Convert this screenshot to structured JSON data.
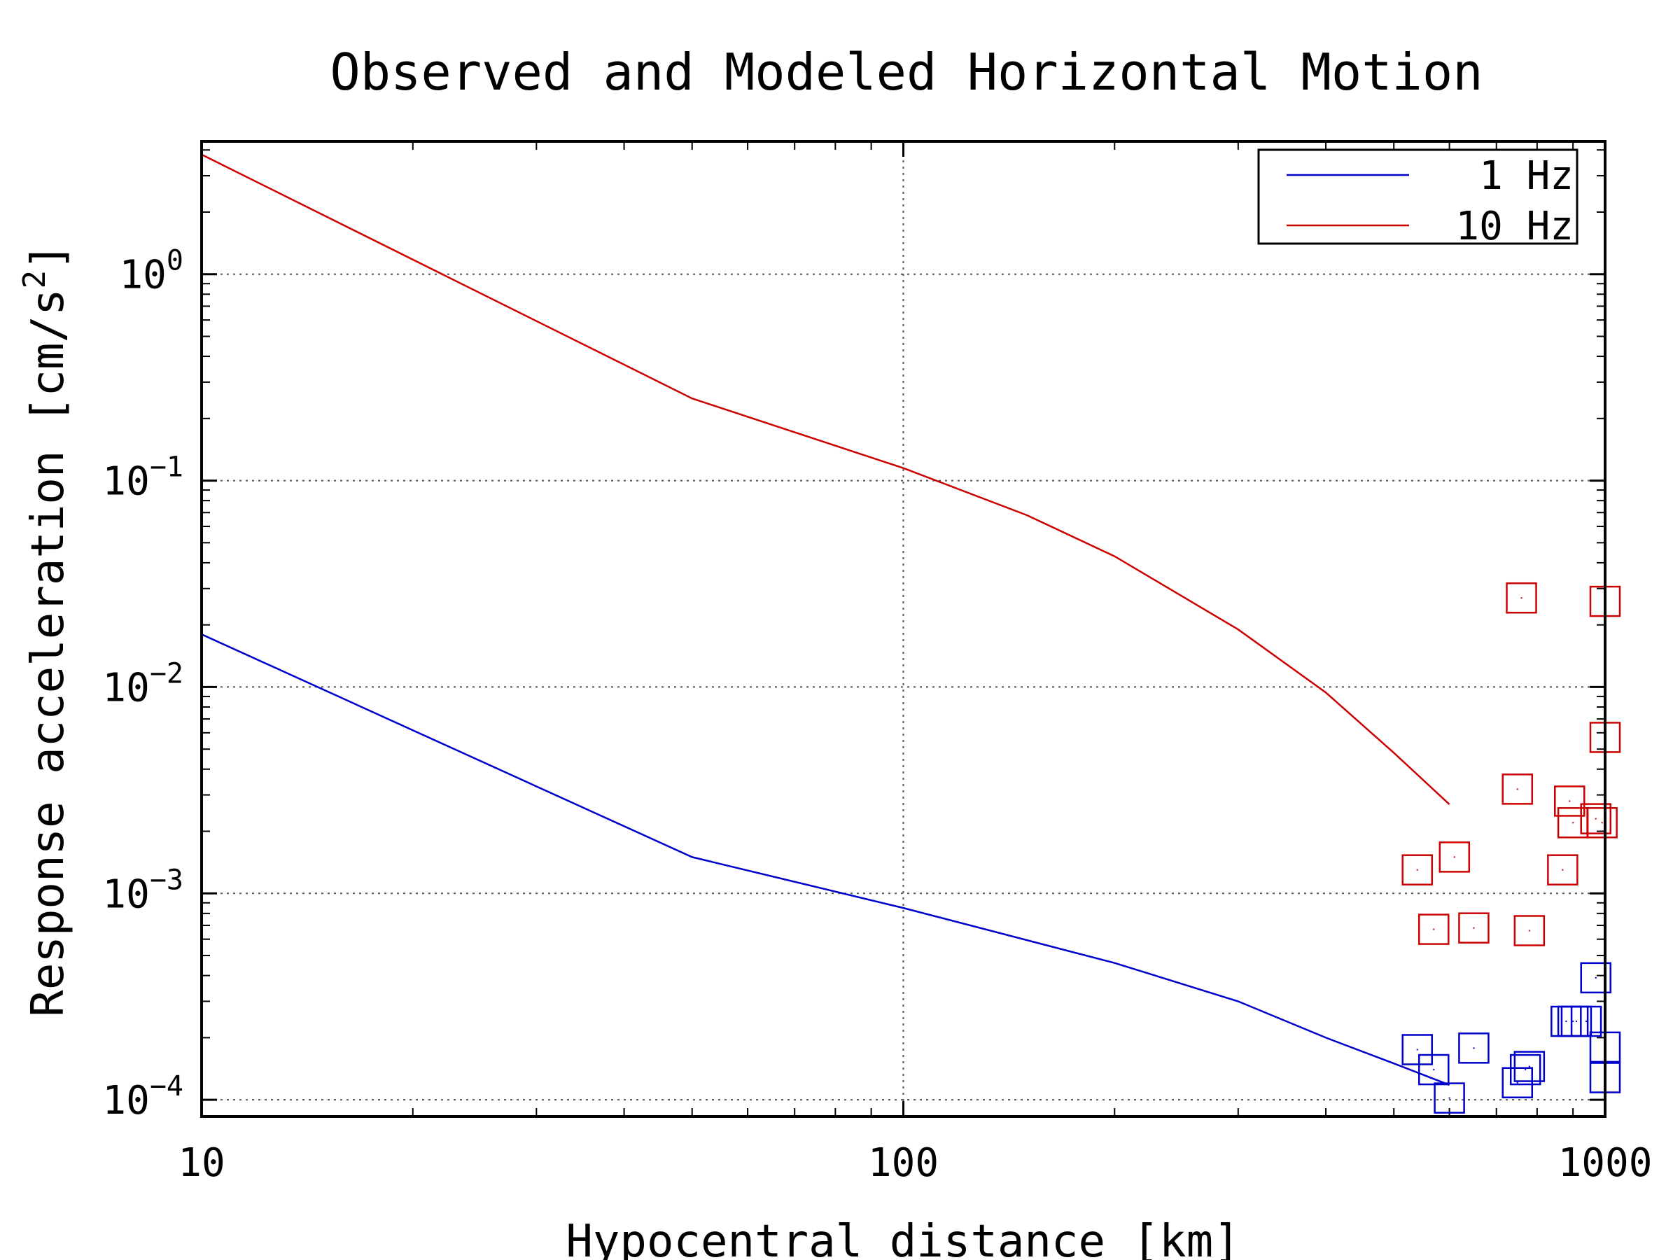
{
  "chart_data": {
    "type": "line",
    "title": "Observed and Modeled Horizontal Motion",
    "xlabel": "Hypocentral distance [km]",
    "ylabel_main": "Response acceleration [cm/s",
    "ylabel_sup": "2",
    "ylabel_close": "]",
    "x_scale": "log",
    "y_scale": "log",
    "xlim": [
      10,
      1000
    ],
    "ylim": [
      8.3e-05,
      4.4
    ],
    "x_ticks": [
      {
        "value": 10,
        "label": "10"
      },
      {
        "value": 100,
        "label": "100"
      },
      {
        "value": 1000,
        "label": "1000"
      }
    ],
    "y_ticks": [
      {
        "value": 1,
        "base": "10",
        "exp": "0"
      },
      {
        "value": 0.1,
        "base": "10",
        "exp": "−1"
      },
      {
        "value": 0.01,
        "base": "10",
        "exp": "−2"
      },
      {
        "value": 0.001,
        "base": "10",
        "exp": "−3"
      },
      {
        "value": 0.0001,
        "base": "10",
        "exp": "−4"
      }
    ],
    "grid": "dotted, at major ticks",
    "legend_position": "top-right",
    "series": [
      {
        "name": "1 Hz",
        "color": "#0000cc",
        "line": {
          "x": [
            10,
            50,
            100,
            200,
            300,
            400,
            500,
            600
          ],
          "y": [
            0.018,
            0.0015,
            0.00085,
            0.00046,
            0.0003,
            0.0002,
            0.00015,
            0.000118
          ]
        },
        "observed": {
          "x": [
            540,
            570,
            600,
            650,
            750,
            770,
            780,
            880,
            900,
            910,
            940,
            970,
            1000,
            1000
          ],
          "y": [
            0.000175,
            0.00014,
            0.000102,
            0.000178,
            0.000121,
            0.00014,
            0.000145,
            0.00024,
            0.00024,
            0.00024,
            0.00024,
            0.00039,
            0.00018,
            0.000128
          ]
        }
      },
      {
        "name": "10 Hz",
        "color": "#cc0000",
        "line": {
          "x": [
            10,
            50,
            100,
            150,
            200,
            300,
            400,
            500,
            600
          ],
          "y": [
            3.8,
            0.25,
            0.115,
            0.068,
            0.043,
            0.019,
            0.0094,
            0.0048,
            0.0027
          ]
        },
        "observed": {
          "x": [
            540,
            570,
            610,
            650,
            750,
            760,
            780,
            870,
            890,
            900,
            970,
            1000,
            1000,
            990
          ],
          "y": [
            0.0013,
            0.00067,
            0.0015,
            0.00068,
            0.0032,
            0.027,
            0.00066,
            0.0013,
            0.0028,
            0.0022,
            0.0023,
            0.0057,
            0.026,
            0.0022
          ]
        }
      }
    ]
  }
}
